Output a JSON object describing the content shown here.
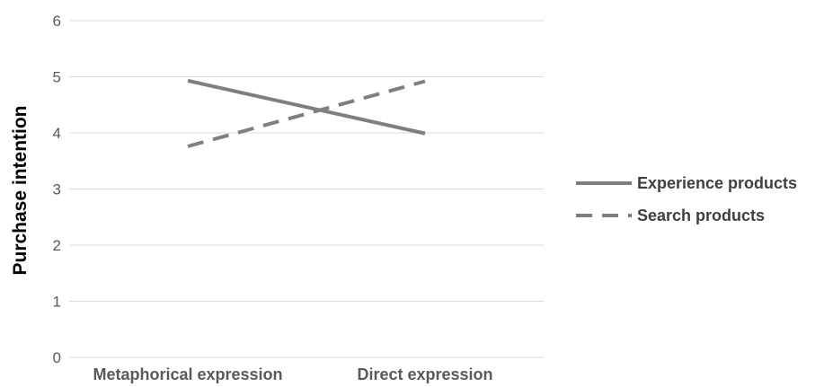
{
  "colors": {
    "series": "#7f7f7f",
    "grid": "#d9d9d9",
    "tick_text": "#595959"
  },
  "chart_data": {
    "type": "line",
    "title": "",
    "xlabel": "",
    "ylabel": "Purchase intention",
    "categories": [
      "Metaphorical expression",
      "Direct expression"
    ],
    "ylim": [
      0,
      6
    ],
    "yticks": [
      0,
      1,
      2,
      3,
      4,
      5,
      6
    ],
    "grid": true,
    "legend_position": "right",
    "series": [
      {
        "name": "Experience products",
        "values": [
          4.93,
          3.99
        ],
        "style": "solid"
      },
      {
        "name": "Search products",
        "values": [
          3.76,
          4.92
        ],
        "style": "dashed"
      }
    ]
  }
}
